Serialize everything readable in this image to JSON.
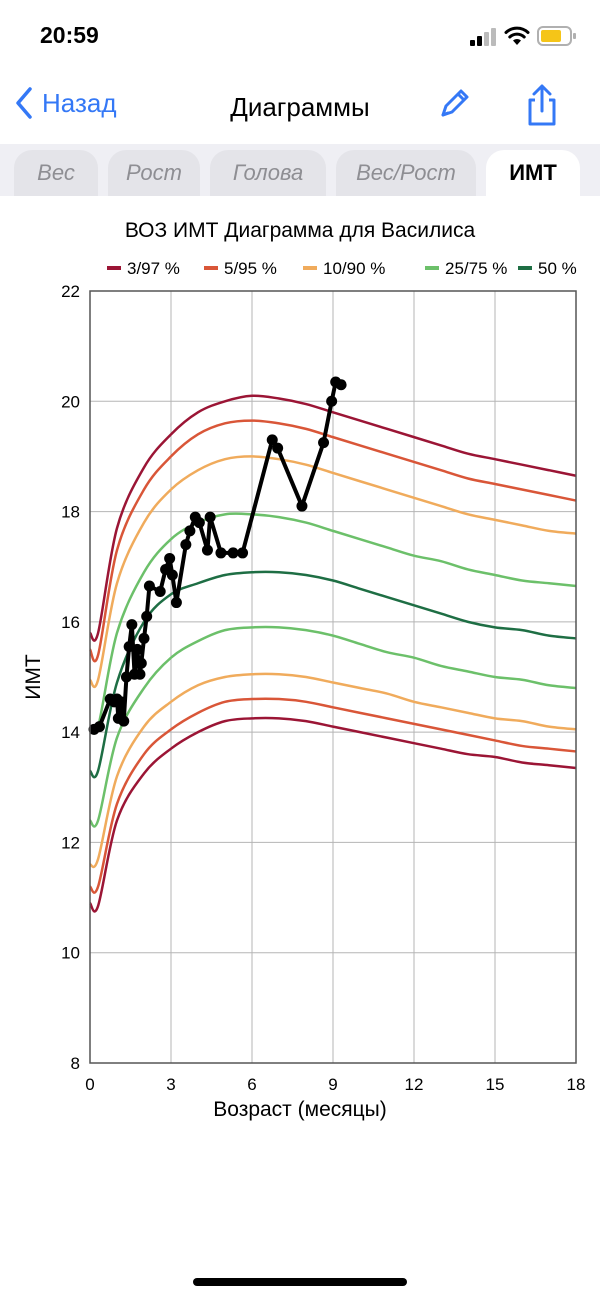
{
  "status": {
    "time": "20:59"
  },
  "nav": {
    "back_label": "Назад",
    "title": "Диаграммы"
  },
  "tabs": [
    {
      "label": "Вес",
      "active": false
    },
    {
      "label": "Рост",
      "active": false
    },
    {
      "label": "Голова",
      "active": false
    },
    {
      "label": "Вес/Рост",
      "active": false
    },
    {
      "label": "ИМТ",
      "active": true
    }
  ],
  "colors": {
    "accent": "#3478f6",
    "battery": "#f5c518"
  },
  "chart_data": {
    "type": "line",
    "title": "ВОЗ ИМТ Диаграмма для Василиса",
    "xlabel": "Возраст (месяцы)",
    "ylabel": "ИМТ",
    "xlim": [
      0,
      18
    ],
    "ylim": [
      8,
      22
    ],
    "x_ticks": [
      0,
      3,
      6,
      9,
      12,
      15,
      18
    ],
    "y_ticks": [
      8,
      10,
      12,
      14,
      16,
      18,
      20,
      22
    ],
    "grid": true,
    "legend_position": "top",
    "legend": [
      {
        "label": "3/97 %",
        "color": "#9b1535"
      },
      {
        "label": "5/95 %",
        "color": "#d95638"
      },
      {
        "label": "10/90 %",
        "color": "#f0ab5c"
      },
      {
        "label": "25/75 %",
        "color": "#6cc06a"
      },
      {
        "label": "50 %",
        "color": "#1e6e44"
      }
    ],
    "curves_x": [
      0,
      0.3,
      1,
      2,
      3,
      4,
      5,
      6,
      7,
      8,
      9,
      10,
      11,
      12,
      13,
      14,
      15,
      16,
      17,
      18
    ],
    "percentile_series": [
      {
        "group": "3/97 %",
        "color": "#9b1535",
        "values": [
          15.8,
          15.8,
          17.7,
          18.8,
          19.4,
          19.8,
          20.0,
          20.1,
          20.05,
          19.95,
          19.8,
          19.65,
          19.5,
          19.35,
          19.2,
          19.05,
          18.95,
          18.85,
          18.75,
          18.65
        ]
      },
      {
        "group": "5/95 %",
        "color": "#d95638",
        "values": [
          15.5,
          15.4,
          17.3,
          18.4,
          19.0,
          19.4,
          19.6,
          19.65,
          19.6,
          19.5,
          19.35,
          19.2,
          19.05,
          18.9,
          18.75,
          18.6,
          18.5,
          18.4,
          18.3,
          18.2
        ]
      },
      {
        "group": "10/90 %",
        "color": "#f0ab5c",
        "values": [
          14.95,
          14.95,
          16.7,
          17.8,
          18.4,
          18.75,
          18.95,
          19.0,
          18.95,
          18.85,
          18.7,
          18.55,
          18.4,
          18.25,
          18.1,
          17.95,
          17.85,
          17.75,
          17.65,
          17.6
        ]
      },
      {
        "group": "25/75 %",
        "color": "#6cc06a",
        "values": [
          14.1,
          14.1,
          15.8,
          16.9,
          17.5,
          17.8,
          17.95,
          17.95,
          17.9,
          17.8,
          17.65,
          17.5,
          17.35,
          17.2,
          17.1,
          16.95,
          16.85,
          16.75,
          16.7,
          16.65
        ]
      },
      {
        "group": "50 %",
        "color": "#1e6e44",
        "values": [
          13.3,
          13.3,
          14.9,
          16.0,
          16.5,
          16.7,
          16.85,
          16.9,
          16.9,
          16.85,
          16.75,
          16.6,
          16.45,
          16.3,
          16.15,
          16.0,
          15.9,
          15.85,
          15.75,
          15.7
        ]
      },
      {
        "group": "25/75 %",
        "color": "#6cc06a",
        "values": [
          12.4,
          12.4,
          13.9,
          14.8,
          15.35,
          15.65,
          15.85,
          15.9,
          15.9,
          15.85,
          15.75,
          15.6,
          15.45,
          15.35,
          15.2,
          15.1,
          15.0,
          14.95,
          14.85,
          14.8
        ]
      },
      {
        "group": "10/90 %",
        "color": "#f0ab5c",
        "values": [
          11.6,
          11.7,
          13.2,
          14.1,
          14.55,
          14.85,
          15.0,
          15.05,
          15.05,
          15.0,
          14.9,
          14.8,
          14.7,
          14.55,
          14.45,
          14.35,
          14.25,
          14.2,
          14.1,
          14.05
        ]
      },
      {
        "group": "5/95 %",
        "color": "#d95638",
        "values": [
          11.2,
          11.2,
          12.7,
          13.6,
          14.05,
          14.35,
          14.55,
          14.6,
          14.6,
          14.55,
          14.45,
          14.35,
          14.25,
          14.15,
          14.05,
          13.95,
          13.85,
          13.75,
          13.7,
          13.65
        ]
      },
      {
        "group": "3/97 %",
        "color": "#9b1535",
        "values": [
          10.9,
          10.85,
          12.4,
          13.25,
          13.7,
          14.0,
          14.2,
          14.25,
          14.25,
          14.2,
          14.1,
          14.0,
          13.9,
          13.8,
          13.7,
          13.6,
          13.55,
          13.45,
          13.4,
          13.35
        ]
      }
    ],
    "child_series": {
      "color": "#000000",
      "x": [
        0.15,
        0.35,
        0.75,
        0.9,
        1.0,
        1.05,
        1.15,
        1.25,
        1.35,
        1.45,
        1.55,
        1.65,
        1.75,
        1.85,
        1.9,
        2.0,
        2.1,
        2.2,
        2.6,
        2.8,
        2.95,
        3.05,
        3.2,
        3.55,
        3.7,
        3.9,
        4.05,
        4.35,
        4.45,
        4.85,
        5.3,
        5.65,
        6.75,
        6.95,
        7.85,
        8.65,
        8.95,
        9.1,
        9.3
      ],
      "values": [
        14.05,
        14.1,
        14.6,
        14.55,
        14.6,
        14.25,
        14.55,
        14.2,
        15.0,
        15.55,
        15.95,
        15.05,
        15.5,
        15.05,
        15.25,
        15.7,
        16.1,
        16.65,
        16.55,
        16.95,
        17.15,
        16.85,
        16.35,
        17.4,
        17.65,
        17.9,
        17.8,
        17.3,
        17.9,
        17.25,
        17.25,
        17.25,
        19.3,
        19.15,
        18.1,
        19.25,
        20.0,
        20.35,
        20.3
      ]
    }
  }
}
